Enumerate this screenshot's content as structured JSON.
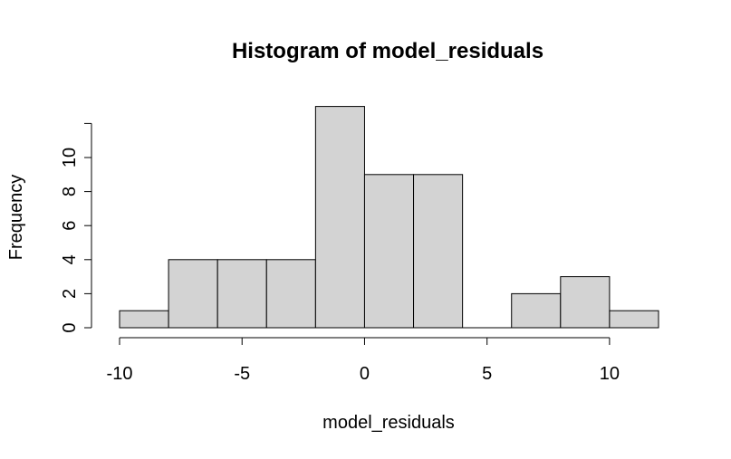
{
  "chart_data": {
    "type": "bar",
    "subtype": "histogram",
    "title": "Histogram of model_residuals",
    "xlabel": "model_residuals",
    "ylabel": "Frequency",
    "bin_edges": [
      -10,
      -8,
      -6,
      -4,
      -2,
      0,
      2,
      4,
      6,
      8,
      10,
      12
    ],
    "values": [
      1,
      4,
      4,
      4,
      13,
      9,
      9,
      0,
      2,
      3,
      1
    ],
    "xlim": [
      -10,
      12
    ],
    "ylim": [
      0,
      13
    ],
    "x_ticks": [
      -10,
      -5,
      0,
      5,
      10
    ],
    "x_tick_labels": [
      "-10",
      "-5",
      "0",
      "5",
      "10"
    ],
    "y_ticks": [
      0,
      2,
      4,
      6,
      8,
      10,
      12
    ],
    "y_tick_labels": [
      "0",
      "2",
      "4",
      "6",
      "8",
      "10",
      ""
    ],
    "grid": false,
    "legend": "none",
    "colors": {
      "bar_fill": "#d3d3d3",
      "bar_stroke": "#000000",
      "axis": "#000000"
    }
  }
}
